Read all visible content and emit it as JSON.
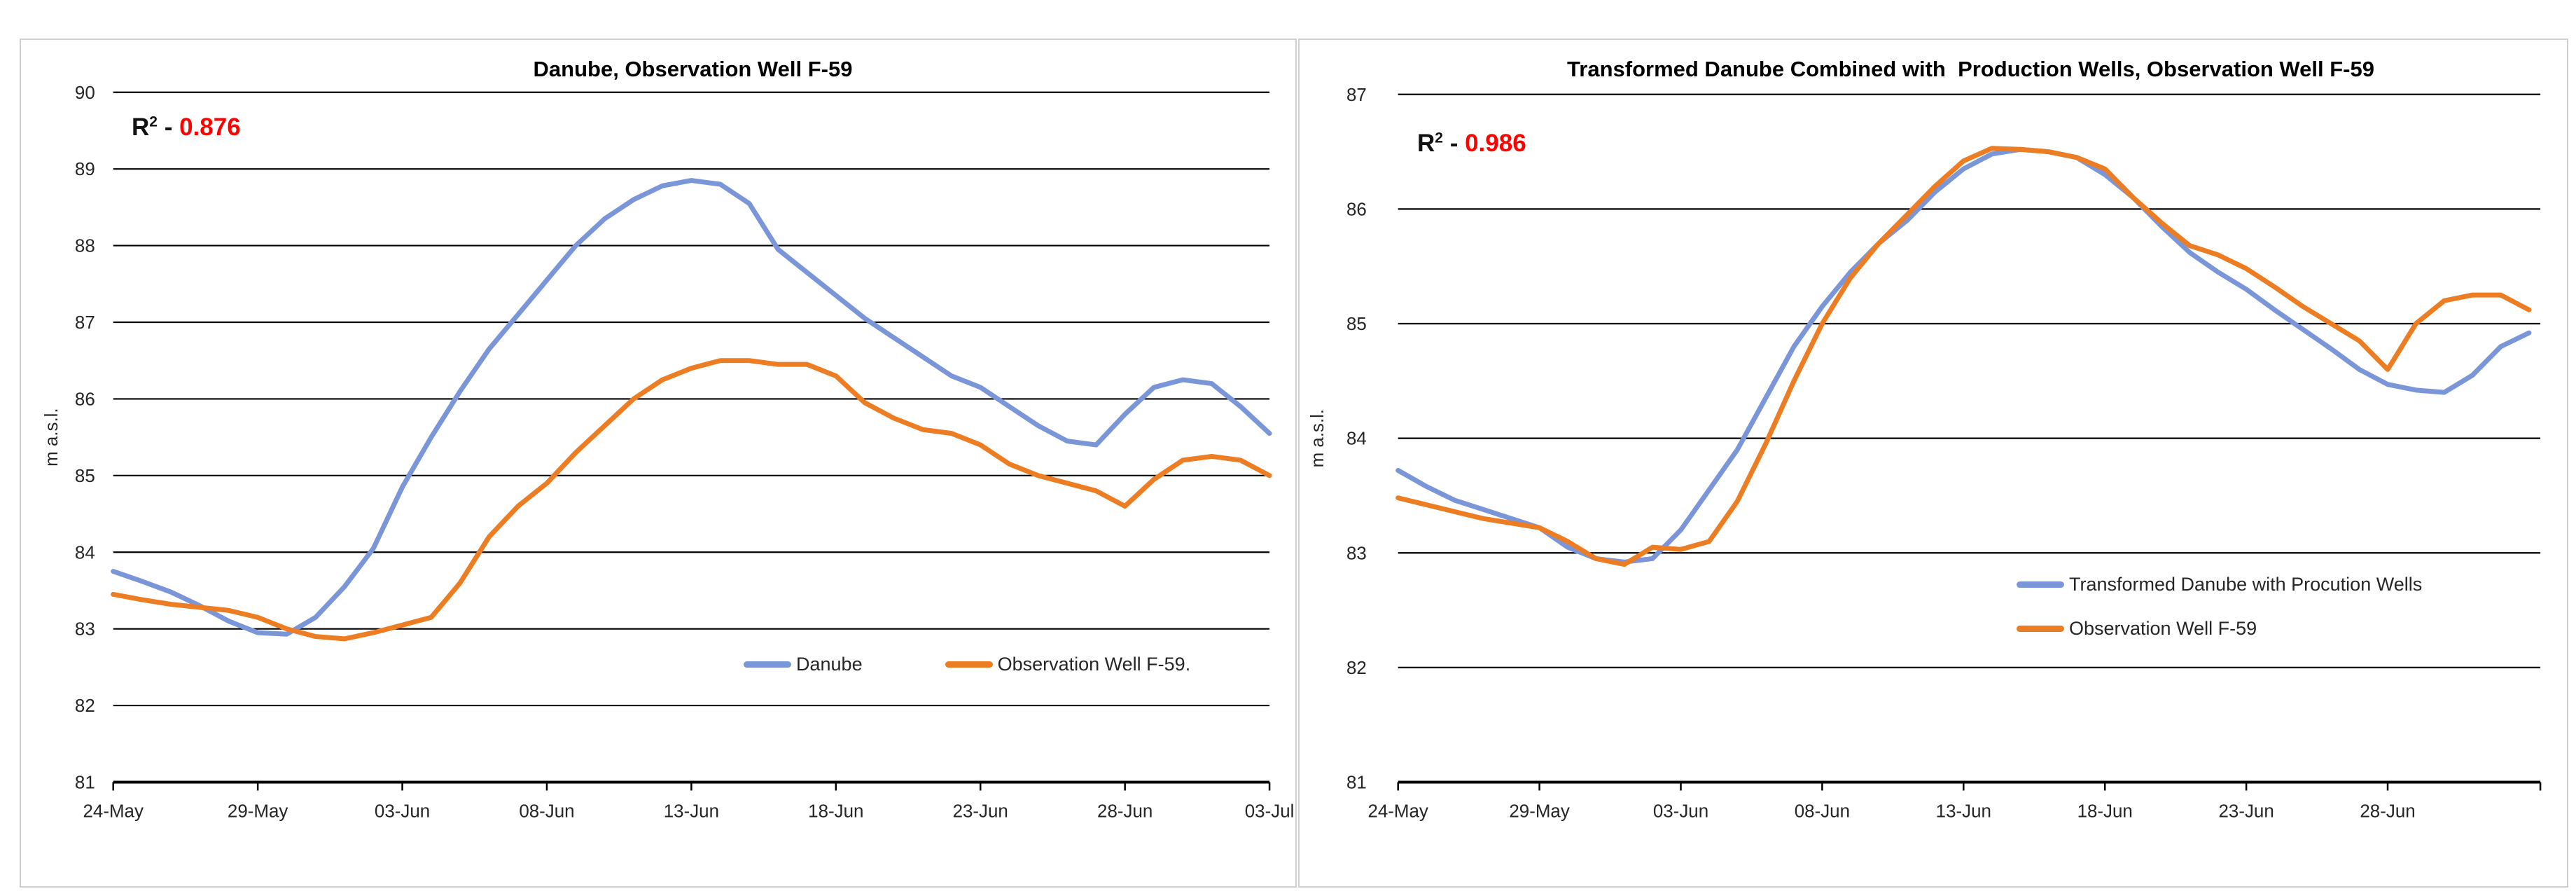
{
  "colors": {
    "series_blue": "#7A96D9",
    "series_orange": "#ED7D22",
    "r2_red": "#FF0000",
    "grid": "#000000",
    "axis": "#000000",
    "tick_text": "#262626",
    "panel_border": "#cfcfcf"
  },
  "charts": [
    {
      "title": "Danube, Observation Well F-59",
      "r2": {
        "base": "R",
        "sup": "2",
        "sep": " - ",
        "value": "0.876"
      },
      "ylabel": "m a.s.l.",
      "legend": [
        {
          "name": "Danube"
        },
        {
          "name": "Observation Well F-59."
        }
      ]
    },
    {
      "title": "Transformed Danube Combined with  Production Wells, Observation Well F-59",
      "r2": {
        "base": "R",
        "sup": "2",
        "sep": " - ",
        "value": "0.986"
      },
      "ylabel": "m a.s.l.",
      "legend": [
        {
          "name": "Transformed Danube with Procution Wells"
        },
        {
          "name": "Observation Well F-59"
        }
      ]
    }
  ],
  "chart_data": [
    {
      "type": "line",
      "title": "Danube, Observation Well F-59",
      "ylabel": "m a.s.l.",
      "ylim": [
        81,
        90
      ],
      "y_ticks": [
        81,
        82,
        83,
        84,
        85,
        86,
        87,
        88,
        89,
        90
      ],
      "x_tick_labels": [
        "24-May",
        "29-May",
        "03-Jun",
        "08-Jun",
        "13-Jun",
        "18-Jun",
        "23-Jun",
        "28-Jun",
        "03-Jul"
      ],
      "x_tick_days": [
        0,
        5,
        10,
        15,
        20,
        25,
        30,
        35,
        40
      ],
      "x_domain_days": [
        0,
        40
      ],
      "end_tick": false,
      "grid": true,
      "annotation_r2": 0.876,
      "legend_position": "inside-bottom-center-horizontal",
      "series": [
        {
          "name": "Danube",
          "color": "#7A96D9",
          "day_step": 1,
          "values": [
            83.75,
            83.62,
            83.48,
            83.3,
            83.1,
            82.95,
            82.93,
            83.15,
            83.55,
            84.05,
            84.85,
            85.5,
            86.1,
            86.65,
            87.1,
            87.55,
            88.0,
            88.35,
            88.6,
            88.78,
            88.85,
            88.8,
            88.55,
            87.95,
            87.65,
            87.35,
            87.05,
            86.8,
            86.55,
            86.3,
            86.15,
            85.9,
            85.65,
            85.45,
            85.4,
            85.8,
            86.15,
            86.25,
            86.2,
            85.9,
            85.55
          ]
        },
        {
          "name": "Observation Well F-59.",
          "color": "#ED7D22",
          "day_step": 1,
          "values": [
            83.45,
            83.38,
            83.32,
            83.28,
            83.24,
            83.15,
            83.0,
            82.9,
            82.87,
            82.95,
            83.05,
            83.15,
            83.6,
            84.2,
            84.6,
            84.9,
            85.3,
            85.65,
            86.0,
            86.25,
            86.4,
            86.5,
            86.5,
            86.45,
            86.45,
            86.3,
            85.95,
            85.75,
            85.6,
            85.55,
            85.4,
            85.15,
            85.0,
            84.9,
            84.8,
            84.6,
            84.95,
            85.2,
            85.25,
            85.2,
            85.0
          ]
        }
      ]
    },
    {
      "type": "line",
      "title": "Transformed Danube Combined with  Production Wells, Observation Well F-59",
      "ylabel": "m a.s.l.",
      "ylim": [
        81,
        87
      ],
      "y_ticks": [
        81,
        82,
        83,
        84,
        85,
        86,
        87
      ],
      "x_tick_labels": [
        "24-May",
        "29-May",
        "03-Jun",
        "08-Jun",
        "13-Jun",
        "18-Jun",
        "23-Jun",
        "28-Jun"
      ],
      "x_tick_days": [
        0,
        5,
        10,
        15,
        20,
        25,
        30,
        35
      ],
      "x_domain_days": [
        0,
        40.4
      ],
      "end_tick": true,
      "grid": true,
      "annotation_r2": 0.986,
      "legend_position": "inside-right-vertical",
      "series": [
        {
          "name": "Transformed Danube with Procution Wells",
          "color": "#7A96D9",
          "day_step": 1,
          "values": [
            83.72,
            83.58,
            83.46,
            83.38,
            83.3,
            83.22,
            83.05,
            82.95,
            82.92,
            82.95,
            83.2,
            83.55,
            83.9,
            84.35,
            84.8,
            85.15,
            85.45,
            85.7,
            85.9,
            86.15,
            86.35,
            86.48,
            86.52,
            86.5,
            86.45,
            86.3,
            86.1,
            85.85,
            85.62,
            85.45,
            85.3,
            85.12,
            84.95,
            84.78,
            84.6,
            84.47,
            84.42,
            84.4,
            84.55,
            84.8,
            84.92
          ]
        },
        {
          "name": "Observation Well F-59",
          "color": "#ED7D22",
          "day_step": 1,
          "values": [
            83.48,
            83.42,
            83.36,
            83.3,
            83.26,
            83.22,
            83.1,
            82.95,
            82.9,
            83.05,
            83.03,
            83.1,
            83.45,
            83.95,
            84.5,
            85.0,
            85.4,
            85.7,
            85.95,
            86.2,
            86.42,
            86.53,
            86.52,
            86.5,
            86.45,
            86.35,
            86.1,
            85.88,
            85.68,
            85.6,
            85.48,
            85.32,
            85.15,
            85.0,
            84.85,
            84.6,
            85.0,
            85.2,
            85.25,
            85.25,
            85.12
          ]
        }
      ]
    }
  ],
  "geometry_note": "two side-by-side chart panels"
}
